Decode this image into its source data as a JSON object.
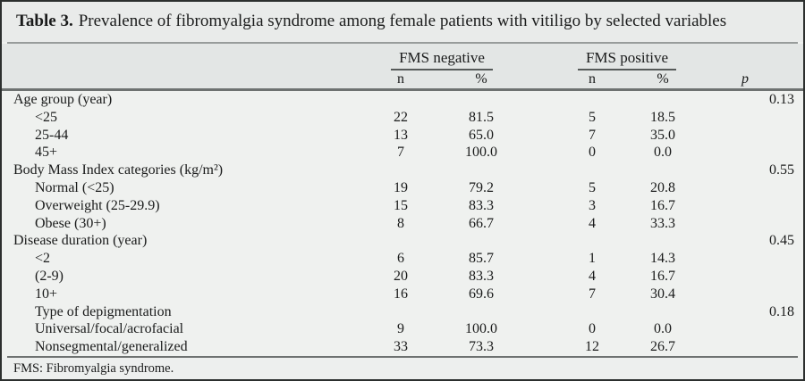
{
  "title": {
    "label": "Table 3.",
    "text": "Prevalence of fibromyalgia syndrome among female patients with vitiligo by selected variables"
  },
  "header": {
    "group_negative": "FMS negative",
    "group_positive": "FMS positive",
    "sub_n": "n",
    "sub_pct": "%",
    "p": "p"
  },
  "rows": [
    {
      "label": "Age group (year)",
      "indent": false,
      "n_neg": "",
      "pct_neg": "",
      "n_pos": "",
      "pct_pos": "",
      "p": "0.13"
    },
    {
      "label": "<25",
      "indent": true,
      "n_neg": "22",
      "pct_neg": "81.5",
      "n_pos": "5",
      "pct_pos": "18.5",
      "p": ""
    },
    {
      "label": "25-44",
      "indent": true,
      "n_neg": "13",
      "pct_neg": "65.0",
      "n_pos": "7",
      "pct_pos": "35.0",
      "p": ""
    },
    {
      "label": "45+",
      "indent": true,
      "n_neg": "7",
      "pct_neg": "100.0",
      "n_pos": "0",
      "pct_pos": "0.0",
      "p": ""
    },
    {
      "label": "Body Mass Index categories (kg/m²)",
      "indent": false,
      "n_neg": "",
      "pct_neg": "",
      "n_pos": "",
      "pct_pos": "",
      "p": "0.55"
    },
    {
      "label": "Normal (<25)",
      "indent": true,
      "n_neg": "19",
      "pct_neg": "79.2",
      "n_pos": "5",
      "pct_pos": "20.8",
      "p": ""
    },
    {
      "label": "Overweight (25-29.9)",
      "indent": true,
      "n_neg": "15",
      "pct_neg": "83.3",
      "n_pos": "3",
      "pct_pos": "16.7",
      "p": ""
    },
    {
      "label": "Obese (30+)",
      "indent": true,
      "n_neg": "8",
      "pct_neg": "66.7",
      "n_pos": "4",
      "pct_pos": "33.3",
      "p": ""
    },
    {
      "label": "Disease duration (year)",
      "indent": false,
      "n_neg": "",
      "pct_neg": "",
      "n_pos": "",
      "pct_pos": "",
      "p": "0.45"
    },
    {
      "label": "<2",
      "indent": true,
      "n_neg": "6",
      "pct_neg": "85.7",
      "n_pos": "1",
      "pct_pos": "14.3",
      "p": ""
    },
    {
      "label": "(2-9)",
      "indent": true,
      "n_neg": "20",
      "pct_neg": "83.3",
      "n_pos": "4",
      "pct_pos": "16.7",
      "p": ""
    },
    {
      "label": "10+",
      "indent": true,
      "n_neg": "16",
      "pct_neg": "69.6",
      "n_pos": "7",
      "pct_pos": "30.4",
      "p": ""
    },
    {
      "label": "Type of depigmentation",
      "indent": true,
      "n_neg": "",
      "pct_neg": "",
      "n_pos": "",
      "pct_pos": "",
      "p": "0.18"
    },
    {
      "label": "Universal/focal/acrofacial",
      "indent": true,
      "n_neg": "9",
      "pct_neg": "100.0",
      "n_pos": "0",
      "pct_pos": "0.0",
      "p": ""
    },
    {
      "label": "Nonsegmental/generalized",
      "indent": true,
      "n_neg": "33",
      "pct_neg": "73.3",
      "n_pos": "12",
      "pct_pos": "26.7",
      "p": ""
    }
  ],
  "footnote": "FMS: Fibromyalgia syndrome.",
  "colors": {
    "border": "#2c2f2e",
    "band_header": "#e3e6e5",
    "band_title": "#e9ebea",
    "body_background": "#eff1ef",
    "text": "#1a1b1b"
  }
}
